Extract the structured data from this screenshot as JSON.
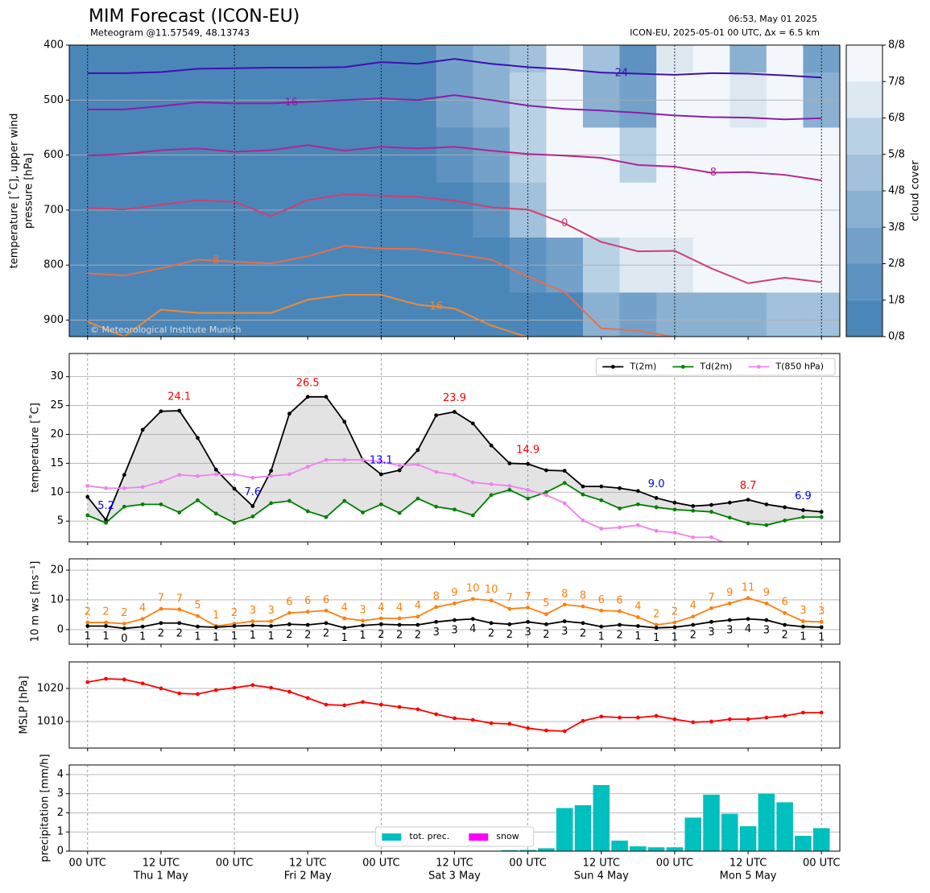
{
  "header": {
    "title": "MIM Forecast (ICON-EU)",
    "subtitle": "Meteogram @11.57549, 48.13743",
    "issued": "06:53, May 01 2025",
    "model_run": "ICON-EU, 2025-05-01 00 UTC, Δx = 6.5 km"
  },
  "time_axis": {
    "x": [
      0,
      3,
      6,
      9,
      12,
      15,
      18,
      21,
      24,
      27,
      30,
      33,
      36,
      39,
      42,
      45,
      48,
      51,
      54,
      57,
      60,
      63,
      66,
      69,
      72,
      75,
      78,
      81,
      84,
      87,
      90,
      93,
      96,
      99,
      102,
      105,
      108,
      111,
      114,
      117,
      120
    ],
    "xlim": [
      -3,
      123
    ],
    "xticks": [
      {
        "value": 0,
        "label": "00 UTC"
      },
      {
        "value": 12,
        "label": "12 UTC",
        "date": "Thu 1 May"
      },
      {
        "value": 24,
        "label": "00 UTC"
      },
      {
        "value": 36,
        "label": "12 UTC",
        "date": "Fri 2 May"
      },
      {
        "value": 48,
        "label": "00 UTC"
      },
      {
        "value": 60,
        "label": "12 UTC",
        "date": "Sat 3 May"
      },
      {
        "value": 72,
        "label": "00 UTC"
      },
      {
        "value": 84,
        "label": "12 UTC",
        "date": "Sun 4 May"
      },
      {
        "value": 96,
        "label": "00 UTC"
      },
      {
        "value": 108,
        "label": "12 UTC",
        "date": "Mon 5 May"
      },
      {
        "value": 120,
        "label": "00 UTC"
      }
    ]
  },
  "chart_data": [
    {
      "type": "contour",
      "ylabel": [
        "temperature [˚C], upper wind",
        "pressure [hPa]"
      ],
      "ylim": [
        930,
        400
      ],
      "yticks": [
        400,
        500,
        600,
        700,
        800,
        900
      ],
      "grid": true,
      "copyright": "© Meteorological Institute Munich",
      "x": [
        0,
        6,
        12,
        18,
        24,
        30,
        36,
        42,
        48,
        54,
        60,
        66,
        72,
        78,
        84,
        90,
        96,
        102,
        108,
        114,
        120
      ],
      "cloud_cover": {
        "pressure": [
          400,
          500,
          600,
          700,
          800,
          900
        ],
        "values": [
          [
            0,
            0,
            0,
            0,
            0,
            0
          ],
          [
            0,
            0,
            0,
            0,
            0,
            0
          ],
          [
            0,
            0,
            0,
            0,
            0,
            0
          ],
          [
            0,
            0,
            0,
            0,
            0,
            0
          ],
          [
            0,
            0,
            0,
            0,
            0,
            0
          ],
          [
            0,
            0,
            0,
            0,
            0,
            0
          ],
          [
            0,
            0,
            0,
            0,
            0,
            0
          ],
          [
            0,
            0,
            0,
            0,
            0,
            0
          ],
          [
            0,
            0,
            0,
            0,
            0,
            0
          ],
          [
            0,
            0,
            0,
            0,
            0,
            0
          ],
          [
            2,
            2,
            1,
            0,
            0,
            0
          ],
          [
            3,
            3,
            2,
            1,
            0,
            0
          ],
          [
            4,
            5,
            5,
            4,
            1,
            0
          ],
          [
            8,
            8,
            8,
            7,
            2,
            0
          ],
          [
            4,
            3,
            8,
            8,
            5,
            3
          ],
          [
            1,
            2,
            5,
            8,
            6,
            2
          ],
          [
            6,
            7,
            7,
            8,
            6,
            3
          ],
          [
            8,
            8,
            8,
            8,
            8,
            3
          ],
          [
            3,
            6,
            8,
            8,
            7,
            3
          ],
          [
            7,
            8,
            8,
            8,
            8,
            4
          ],
          [
            2,
            3,
            7,
            8,
            8,
            4
          ]
        ]
      },
      "colorbar": {
        "label": "cloud cover",
        "ticks": [
          {
            "value": 0,
            "label": "0/8"
          },
          {
            "value": 1,
            "label": "1/8"
          },
          {
            "value": 2,
            "label": "2/8"
          },
          {
            "value": 3,
            "label": "3/8"
          },
          {
            "value": 4,
            "label": "4/8"
          },
          {
            "value": 5,
            "label": "5/8"
          },
          {
            "value": 6,
            "label": "6/8"
          },
          {
            "value": 7,
            "label": "7/8"
          },
          {
            "value": 8,
            "label": "8/8"
          }
        ],
        "colors": [
          "#4b86b9",
          "#5d92c1",
          "#73a1c9",
          "#8ab1d2",
          "#a1c1dc",
          "#b8d1e5",
          "#dde8f1",
          "#f3f7fb"
        ]
      },
      "isotherms": [
        {
          "level": -24,
          "color": "#3f0fb0",
          "pressure": [
            451,
            451,
            449,
            443,
            442,
            441,
            441,
            440,
            431,
            434,
            425,
            434,
            440,
            444,
            450,
            452,
            454,
            451,
            452,
            455,
            459
          ]
        },
        {
          "level": -16,
          "color": "#8a1ea8",
          "pressure": [
            517,
            517,
            511,
            504,
            506,
            506,
            503,
            500,
            497,
            500,
            491,
            500,
            510,
            516,
            519,
            523,
            528,
            531,
            532,
            535,
            533
          ]
        },
        {
          "level": -8,
          "color": "#b02590",
          "pressure": [
            601,
            598,
            591,
            588,
            594,
            591,
            582,
            592,
            585,
            588,
            585,
            592,
            598,
            601,
            605,
            618,
            621,
            632,
            631,
            636,
            646
          ]
        },
        {
          "level": 0,
          "color": "#cf3f70",
          "pressure": [
            696,
            699,
            690,
            682,
            685,
            711,
            682,
            671,
            674,
            676,
            683,
            695,
            699,
            724,
            758,
            775,
            774,
            806,
            833,
            823,
            831
          ]
        },
        {
          "level": 8,
          "color": "#e3704d",
          "pressure": [
            815,
            819,
            806,
            790,
            794,
            797,
            784,
            765,
            770,
            771,
            780,
            790,
            821,
            849,
            915,
            919,
            931,
            null,
            null,
            null,
            null
          ]
        },
        {
          "level": 16,
          "color": "#ec8a35",
          "pressure": [
            903,
            930,
            881,
            887,
            887,
            887,
            863,
            854,
            854,
            872,
            879,
            910,
            931,
            null,
            null,
            null,
            null,
            null,
            null,
            null,
            null
          ]
        }
      ]
    },
    {
      "type": "line",
      "ylabel": "temperature [˚C]",
      "ylim": [
        1.4,
        34
      ],
      "yticks": [
        5,
        10,
        15,
        20,
        25,
        30
      ],
      "grid": true,
      "legend": "upper right",
      "fill_between_color": "#e3e3e3",
      "series": [
        {
          "name": "T(2m)",
          "color": "#000000",
          "values": [
            9.2,
            5.2,
            13.0,
            20.8,
            24.0,
            24.1,
            19.4,
            13.9,
            10.6,
            7.6,
            13.7,
            23.6,
            26.5,
            26.5,
            22.2,
            15.6,
            13.1,
            13.8,
            17.3,
            23.3,
            23.9,
            21.9,
            18.1,
            15.0,
            14.9,
            13.8,
            13.7,
            11.0,
            11.0,
            10.7,
            10.2,
            9.0,
            8.2,
            7.6,
            7.8,
            8.2,
            8.7,
            7.9,
            7.4,
            6.9,
            6.6
          ],
          "value_labels": [
            null,
            "5.2",
            null,
            null,
            null,
            "24.1",
            null,
            null,
            null,
            "7.6",
            null,
            null,
            "26.5",
            null,
            null,
            null,
            "13.1",
            null,
            null,
            null,
            "23.9",
            null,
            null,
            null,
            "14.9",
            null,
            null,
            null,
            null,
            null,
            null,
            "9.0",
            null,
            null,
            null,
            null,
            "8.7",
            null,
            null,
            "6.9",
            null
          ],
          "value_label_colors": [
            null,
            "#0000ff",
            null,
            null,
            null,
            "#ff0000",
            null,
            null,
            null,
            "#0000ff",
            null,
            null,
            "#ff0000",
            null,
            null,
            null,
            "#0000ff",
            null,
            null,
            null,
            "#ff0000",
            null,
            null,
            null,
            "#ff0000",
            null,
            null,
            null,
            null,
            null,
            null,
            "#0000ff",
            null,
            null,
            null,
            null,
            "#ff0000",
            null,
            null,
            "#0000ff",
            null
          ]
        },
        {
          "name": "Td(2m)",
          "color": "#008000",
          "values": [
            6.0,
            4.7,
            7.5,
            7.9,
            7.9,
            6.5,
            8.6,
            6.3,
            4.7,
            5.8,
            8.1,
            8.5,
            6.7,
            5.7,
            8.5,
            6.5,
            7.9,
            6.4,
            8.9,
            7.5,
            7.0,
            6.0,
            9.5,
            10.4,
            8.9,
            10.0,
            11.6,
            9.6,
            8.6,
            7.2,
            7.9,
            7.4,
            7.0,
            6.8,
            6.6,
            5.6,
            4.6,
            4.3,
            5.1,
            5.7,
            5.7
          ]
        },
        {
          "name": "T(850 hPa)",
          "color": "#ee82ee",
          "values": [
            11.1,
            10.7,
            10.7,
            10.9,
            11.8,
            13.0,
            12.8,
            13.1,
            13.1,
            12.5,
            12.8,
            13.1,
            14.4,
            15.6,
            15.6,
            15.6,
            15.3,
            14.6,
            14.8,
            13.5,
            13.0,
            11.7,
            11.4,
            11.1,
            10.4,
            9.5,
            8.1,
            5.1,
            3.7,
            3.9,
            4.3,
            3.3,
            3.0,
            2.2,
            2.2,
            0.9,
            null,
            null,
            null,
            null,
            null
          ]
        }
      ]
    },
    {
      "type": "line",
      "ylabel": "10 m ws [ms⁻¹]",
      "ylim": [
        -4.9,
        23.8
      ],
      "yticks": [
        0,
        10,
        20
      ],
      "grid": true,
      "series": [
        {
          "color": "#ff7f0e",
          "values": [
            2.4,
            2.4,
            2.0,
            3.6,
            7.0,
            6.8,
            4.6,
            1.2,
            2.0,
            2.8,
            2.8,
            5.6,
            6.0,
            6.4,
            3.8,
            3.0,
            3.8,
            3.8,
            4.4,
            7.6,
            8.8,
            10.3,
            9.8,
            7.0,
            7.4,
            5.2,
            8.4,
            7.8,
            6.4,
            6.2,
            4.2,
            1.6,
            2.4,
            4.4,
            7.2,
            8.8,
            10.6,
            8.8,
            5.6,
            2.8,
            2.6
          ],
          "value_labels": [
            "2",
            "2",
            "2",
            "4",
            "7",
            "7",
            "5",
            "1",
            "2",
            "3",
            "3",
            "6",
            "6",
            "6",
            "4",
            "3",
            "4",
            "4",
            "4",
            "8",
            "9",
            "10",
            "10",
            "7",
            "7",
            "5",
            "8",
            "8",
            "6",
            "6",
            "4",
            "2",
            "2",
            "4",
            "7",
            "9",
            "11",
            "9",
            "6",
            "3",
            "3"
          ]
        },
        {
          "color": "#000000",
          "values": [
            1.2,
            1.2,
            0.4,
            1.0,
            2.2,
            2.2,
            1.0,
            0.8,
            1.2,
            1.4,
            1.2,
            1.8,
            1.6,
            2.2,
            0.6,
            1.4,
            1.8,
            1.6,
            1.6,
            2.6,
            3.2,
            3.6,
            2.2,
            1.8,
            2.6,
            1.8,
            2.8,
            2.2,
            1.0,
            1.6,
            1.2,
            0.6,
            0.8,
            1.6,
            2.6,
            3.2,
            3.6,
            3.2,
            1.6,
            1.0,
            0.8
          ],
          "value_labels": [
            "1",
            "1",
            "0",
            "1",
            "2",
            "2",
            "1",
            "1",
            "1",
            "1",
            "1",
            "2",
            "2",
            "2",
            "1",
            "1",
            "2",
            "2",
            "2",
            "3",
            "3",
            "4",
            "2",
            "2",
            "3",
            "2",
            "3",
            "2",
            "1",
            "2",
            "1",
            "1",
            "1",
            "2",
            "3",
            "3",
            "4",
            "3",
            "2",
            "1",
            "1"
          ]
        }
      ]
    },
    {
      "type": "line",
      "ylabel": "MSLP [hPa]",
      "ylim": [
        1002,
        1028
      ],
      "yticks": [
        1010,
        1020
      ],
      "grid": true,
      "series": [
        {
          "color": "#ff0000",
          "values": [
            1021.9,
            1022.9,
            1022.7,
            1021.5,
            1020.0,
            1018.5,
            1018.3,
            1019.5,
            1020.2,
            1021.0,
            1020.2,
            1019.0,
            1017.1,
            1015.1,
            1014.9,
            1015.9,
            1015.1,
            1014.4,
            1013.7,
            1012.2,
            1011.0,
            1010.5,
            1009.5,
            1009.3,
            1008.0,
            1007.3,
            1007.1,
            1010.2,
            1011.5,
            1011.2,
            1011.2,
            1011.7,
            1010.7,
            1009.8,
            1010.0,
            1010.7,
            1010.7,
            1011.2,
            1011.7,
            1012.7,
            1012.7
          ]
        }
      ]
    },
    {
      "type": "bar",
      "ylabel": "precipitation [mm/h]",
      "ylim": [
        0,
        4.5
      ],
      "yticks": [
        0,
        1,
        2,
        3,
        4
      ],
      "grid": true,
      "legend": "lower center",
      "series": [
        {
          "name": "tot. prec.",
          "color": "#00bfbf",
          "values": [
            0,
            0,
            0,
            0,
            0,
            0,
            0,
            0,
            0,
            0,
            0,
            0,
            0,
            0,
            0,
            0,
            0,
            0,
            0,
            0,
            0,
            0,
            0.02,
            0.05,
            0.06,
            0.15,
            2.25,
            2.4,
            3.45,
            0.55,
            0.25,
            0.2,
            0.2,
            1.75,
            2.95,
            1.95,
            1.3,
            3.0,
            2.55,
            0.8,
            1.2
          ]
        },
        {
          "name": "snow",
          "color": "#ff00ff",
          "values": [
            0,
            0,
            0,
            0,
            0,
            0,
            0,
            0,
            0,
            0,
            0,
            0,
            0,
            0,
            0,
            0,
            0,
            0,
            0,
            0,
            0,
            0,
            0,
            0,
            0,
            0,
            0,
            0,
            0,
            0,
            0,
            0,
            0,
            0,
            0,
            0,
            0,
            0,
            0,
            0,
            0
          ]
        }
      ]
    }
  ]
}
